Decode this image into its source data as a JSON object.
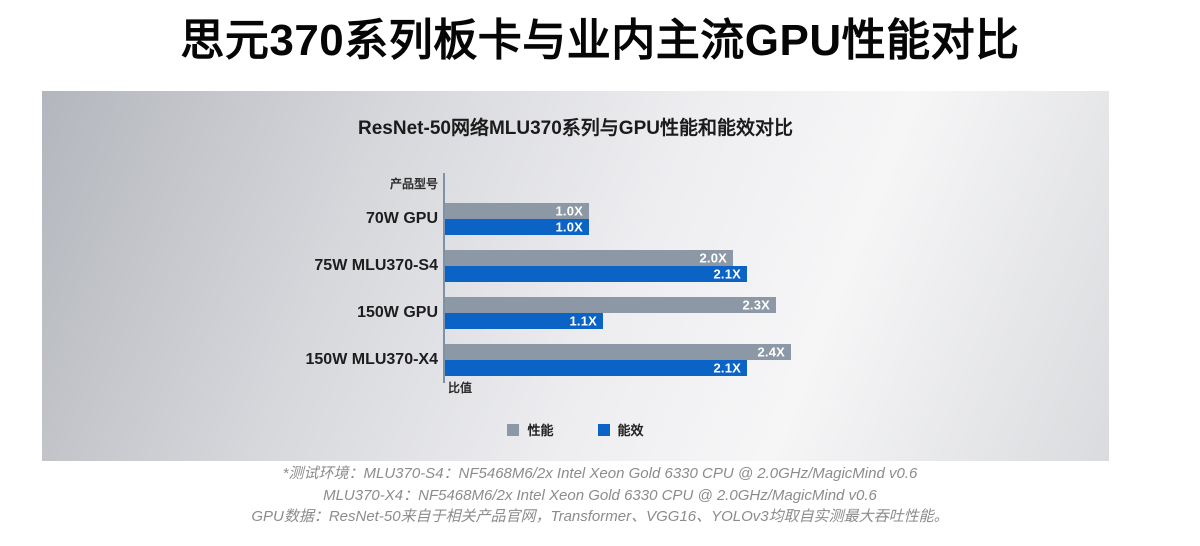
{
  "page_title": "思元370系列板卡与业内主流GPU性能对比",
  "colors": {
    "performance_gray": "#8d98a6",
    "efficiency_blue": "#0b63c5",
    "axis_line": "#7e91a6",
    "panel_background_start": "#b3b6bc",
    "panel_background_end": "#dadbde",
    "value_label_text": "#ffffff",
    "footnote_text": "#8c8c8c"
  },
  "chart_data": {
    "type": "bar",
    "orientation": "horizontal",
    "title": "ResNet-50网络MLU370系列与GPU性能和能效对比",
    "y_axis_label": "产品型号",
    "x_axis_label": "比值",
    "categories": [
      "70W GPU",
      "75W MLU370-S4",
      "150W GPU",
      "150W MLU370-X4"
    ],
    "series": [
      {
        "name": "性能",
        "color": "#8d98a6",
        "values": [
          1.0,
          2.0,
          2.3,
          2.4
        ],
        "labels": [
          "1.0X",
          "2.0X",
          "2.3X",
          "2.4X"
        ]
      },
      {
        "name": "能效",
        "color": "#0b63c5",
        "values": [
          1.0,
          2.1,
          1.1,
          2.1
        ],
        "labels": [
          "1.0X",
          "2.1X",
          "1.1X",
          "2.1X"
        ]
      }
    ],
    "xlim": [
      0,
      2.5
    ],
    "grid": false,
    "legend_position": "bottom-center"
  },
  "footnotes": [
    "*测试环境：MLU370-S4：NF5468M6/2x Intel Xeon Gold 6330 CPU @ 2.0GHz/MagicMind v0.6",
    "MLU370-X4：NF5468M6/2x Intel Xeon Gold 6330 CPU @ 2.0GHz/MagicMind v0.6",
    "GPU数据：ResNet-50来自于相关产品官网，Transformer、VGG16、YOLOv3均取自实测最大吞吐性能。"
  ]
}
